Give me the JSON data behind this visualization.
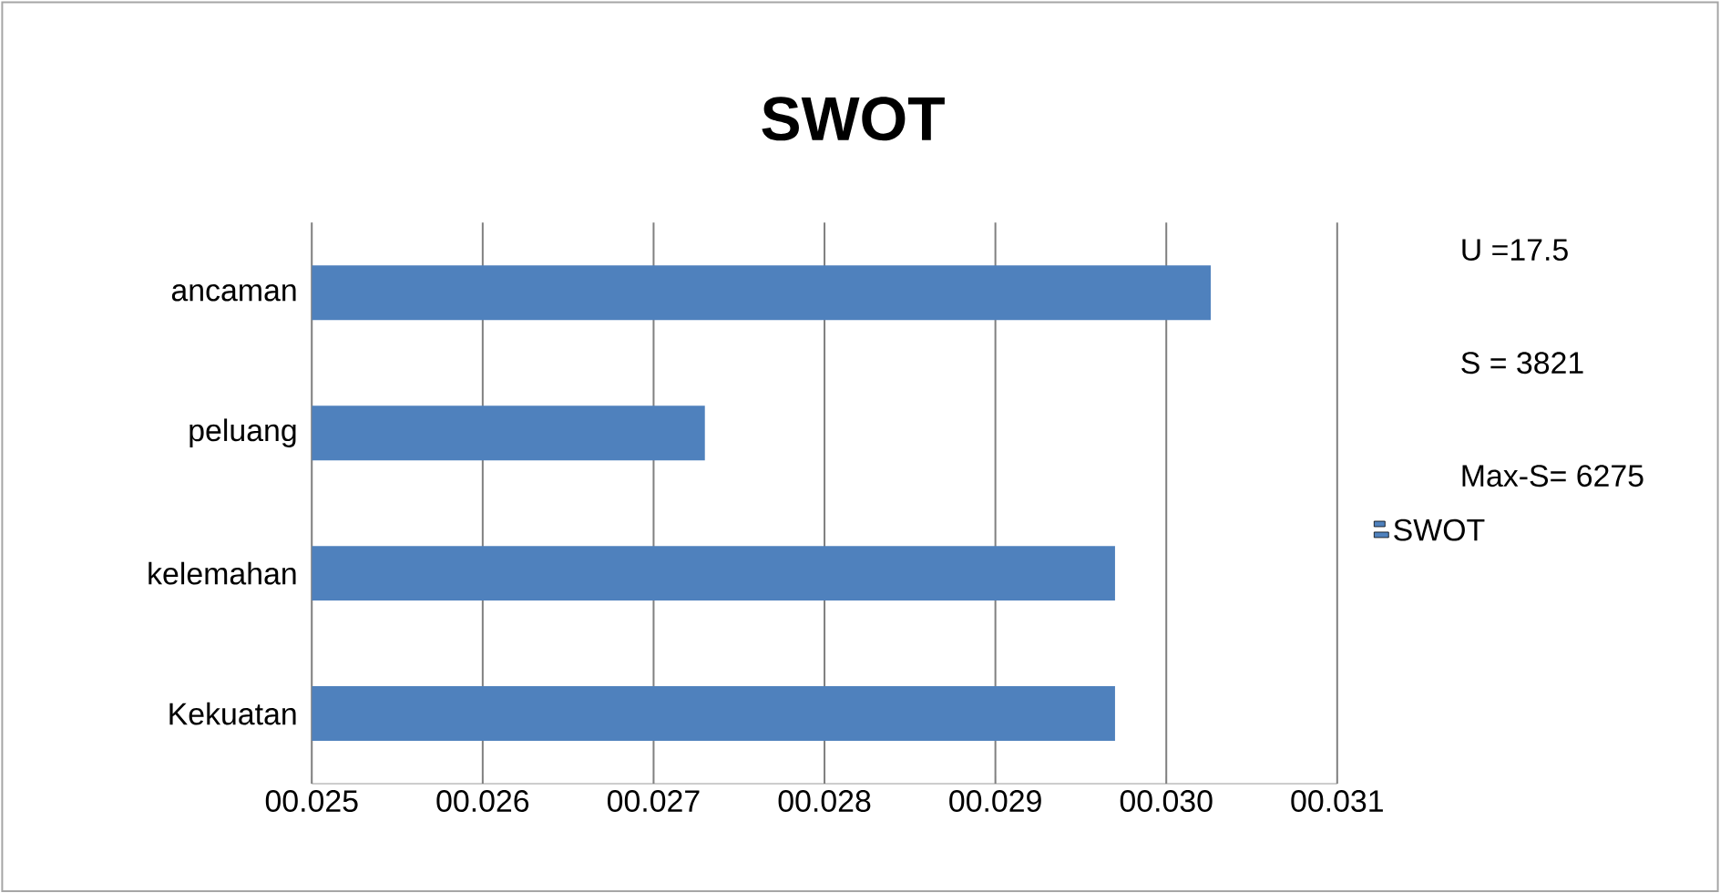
{
  "chart_data": {
    "type": "bar",
    "orientation": "horizontal",
    "title": "SWOT",
    "categories": [
      "ancaman",
      "peluang",
      "kelemahan",
      "Kekuatan"
    ],
    "series": [
      {
        "name": "SWOT",
        "color": "#4f81bd",
        "values": [
          0.03026,
          0.0273,
          0.0297,
          0.0297
        ]
      }
    ],
    "xlim": [
      0.025,
      0.031
    ],
    "xticks": [
      {
        "value": 0.025,
        "label": "00.025"
      },
      {
        "value": 0.026,
        "label": "00.026"
      },
      {
        "value": 0.027,
        "label": "00.027"
      },
      {
        "value": 0.028,
        "label": "00.028"
      },
      {
        "value": 0.029,
        "label": "00.029"
      },
      {
        "value": 0.03,
        "label": "00.030"
      },
      {
        "value": 0.031,
        "label": "00.031"
      }
    ],
    "grid": "x",
    "legend": "right",
    "annotations": [
      "U =17.5",
      "S = 3821",
      "Max-S= 6275"
    ]
  }
}
